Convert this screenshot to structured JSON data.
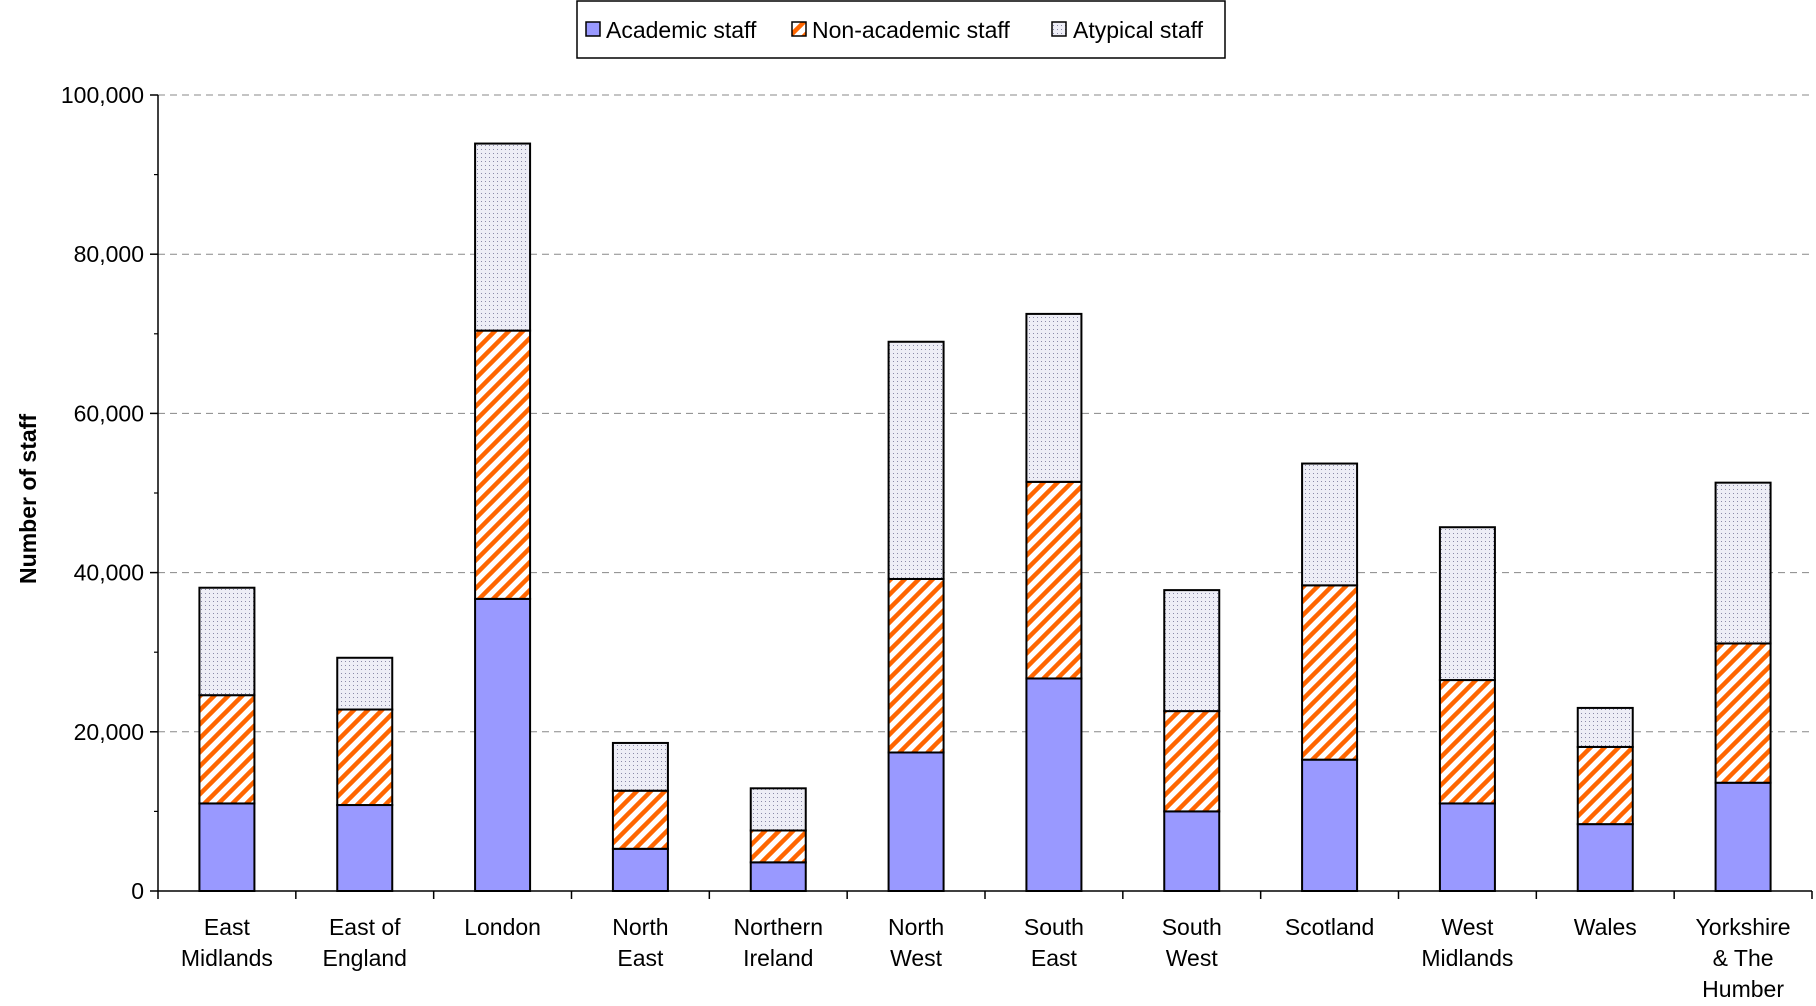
{
  "chart_data": {
    "type": "bar",
    "stacked": true,
    "ylabel": "Number of staff",
    "ylim": [
      0,
      100000
    ],
    "yticks": [
      "0",
      "20,000",
      "40,000",
      "60,000",
      "80,000",
      "100,000"
    ],
    "ytick_values": [
      0,
      20000,
      40000,
      60000,
      80000,
      100000
    ],
    "grid": "horizontal dashed",
    "legend_position": "top-center",
    "categories": [
      [
        "East",
        "Midlands"
      ],
      [
        "East of",
        "England"
      ],
      [
        "London"
      ],
      [
        "North",
        "East"
      ],
      [
        "Northern",
        "Ireland"
      ],
      [
        "North",
        "West"
      ],
      [
        "South",
        "East"
      ],
      [
        "South",
        "West"
      ],
      [
        "Scotland"
      ],
      [
        "West",
        "Midlands"
      ],
      [
        "Wales"
      ],
      [
        "Yorkshire",
        "& The",
        "Humber"
      ]
    ],
    "series": [
      {
        "name": "Academic staff",
        "color": "#9999ff",
        "pattern": "solid",
        "values": [
          11000,
          10800,
          36700,
          5300,
          3600,
          17400,
          26700,
          10000,
          16500,
          11000,
          8400,
          13600
        ]
      },
      {
        "name": "Non-academic staff",
        "color": "#ff6600",
        "pattern": "diagonal-stripes",
        "values": [
          13600,
          12000,
          33700,
          7300,
          4000,
          21800,
          24700,
          12600,
          21900,
          15500,
          9700,
          17500
        ]
      },
      {
        "name": "Atypical staff",
        "color": "#d9d9e6",
        "pattern": "dots",
        "values": [
          13500,
          6500,
          23500,
          6000,
          5300,
          29800,
          21100,
          15200,
          15300,
          19200,
          4900,
          20200
        ]
      }
    ]
  }
}
